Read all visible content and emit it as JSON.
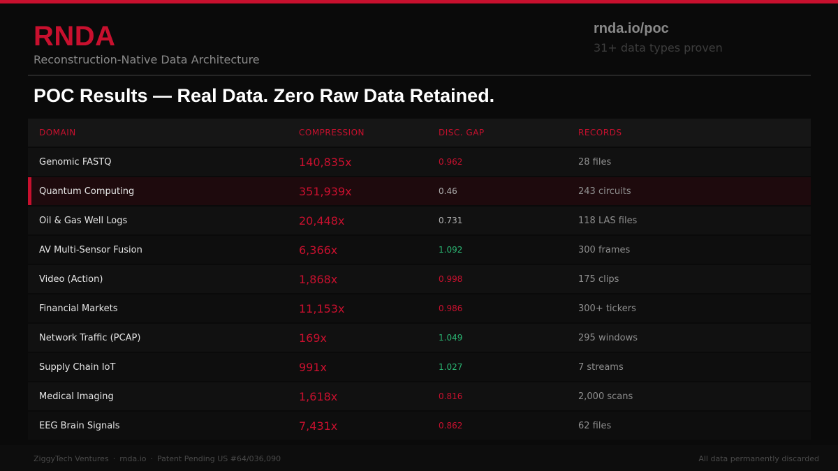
{
  "brand": {
    "title": "RNDA",
    "subtitle": "Reconstruction-Native Data Architecture"
  },
  "meta": {
    "url": "rnda.io/poc",
    "proof": "31+ data types proven"
  },
  "slide_title": "POC Results — Real Data. Zero Raw Data Retained.",
  "colors": {
    "accent": "#c8102e",
    "positive": "#2bb673",
    "neutral": "#b0b0b0"
  },
  "table": {
    "headers": {
      "domain": "DOMAIN",
      "compression": "COMPRESSION",
      "gap": "DISC. GAP",
      "records": "RECORDS"
    },
    "rows": [
      {
        "domain": "Genomic FASTQ",
        "compression": "140,835x",
        "gap": "0.962",
        "gap_status": "accent",
        "records": "28 files"
      },
      {
        "domain": "Quantum Computing",
        "compression": "351,939x",
        "gap": "0.46",
        "gap_status": "neutral",
        "records": "243 circuits",
        "highlighted": true
      },
      {
        "domain": "Oil & Gas Well Logs",
        "compression": "20,448x",
        "gap": "0.731",
        "gap_status": "neutral",
        "records": "118 LAS files"
      },
      {
        "domain": "AV Multi-Sensor Fusion",
        "compression": "6,366x",
        "gap": "1.092",
        "gap_status": "positive",
        "records": "300 frames"
      },
      {
        "domain": "Video (Action)",
        "compression": "1,868x",
        "gap": "0.998",
        "gap_status": "accent",
        "records": "175 clips"
      },
      {
        "domain": "Financial Markets",
        "compression": "11,153x",
        "gap": "0.986",
        "gap_status": "accent",
        "records": "300+ tickers"
      },
      {
        "domain": "Network Traffic (PCAP)",
        "compression": "169x",
        "gap": "1.049",
        "gap_status": "positive",
        "records": "295 windows"
      },
      {
        "domain": "Supply Chain IoT",
        "compression": "991x",
        "gap": "1.027",
        "gap_status": "positive",
        "records": "7 streams"
      },
      {
        "domain": "Medical Imaging",
        "compression": "1,618x",
        "gap": "0.816",
        "gap_status": "accent",
        "records": "2,000 scans"
      },
      {
        "domain": "EEG Brain Signals",
        "compression": "7,431x",
        "gap": "0.862",
        "gap_status": "accent",
        "records": "62 files"
      }
    ]
  },
  "footer": {
    "company": "ZiggyTech Ventures",
    "site": "rnda.io",
    "patent": "Patent Pending US #64/036,090",
    "separator": "·",
    "note": "All data permanently discarded"
  }
}
